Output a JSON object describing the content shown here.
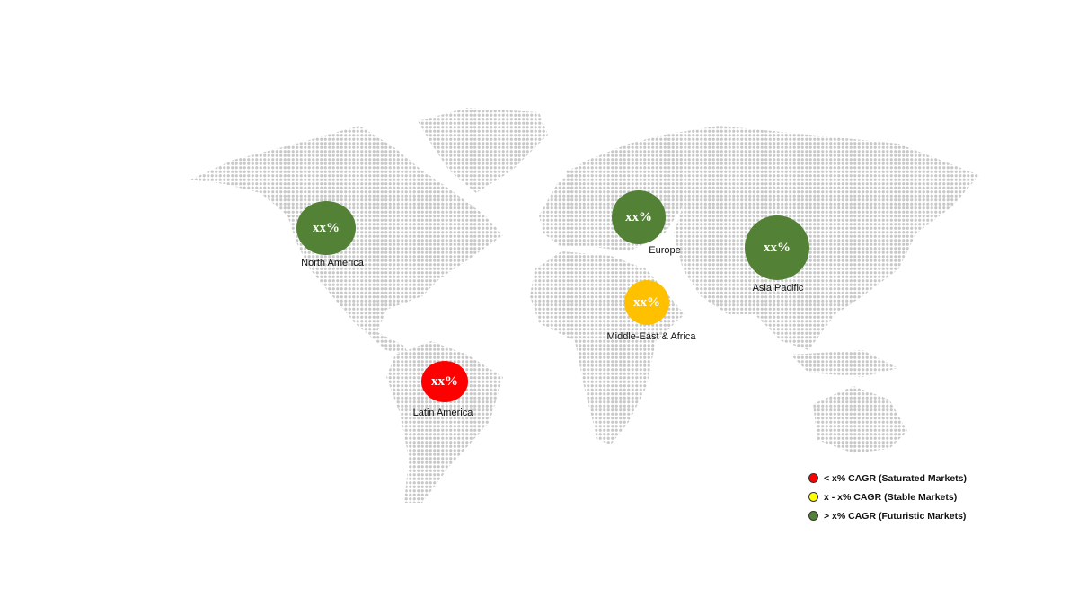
{
  "regions": [
    {
      "name": "North America",
      "value": "xx%",
      "color": "#538135"
    },
    {
      "name": "Europe",
      "value": "xx%",
      "color": "#538135"
    },
    {
      "name": "Asia Pacific",
      "value": "xx%",
      "color": "#538135"
    },
    {
      "name": "Middle-East & Africa",
      "value": "xx%",
      "color": "#FFC000"
    },
    {
      "name": "Latin America",
      "value": "xx%",
      "color": "#FF0000"
    }
  ],
  "legend": [
    {
      "label": "< x% CAGR (Saturated Markets)",
      "color": "#FF0000"
    },
    {
      "label": "x - x% CAGR (Stable Markets)",
      "color": "#FFFF00"
    },
    {
      "label": "> x% CAGR (Futuristic Markets)",
      "color": "#538135"
    }
  ],
  "map_dot_color": "#c8c8c8"
}
